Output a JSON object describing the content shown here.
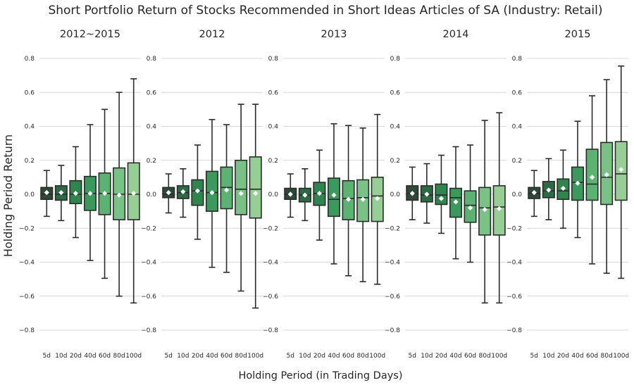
{
  "chart_data": {
    "type": "boxplot",
    "title": "Short Portfolio Return of Stocks Recommended in Short Ideas Articles of SA (Industry: Retail)",
    "ylabel": "Holding Period Return",
    "xlabel": "Holding Period (in Trading Days)",
    "ylim": [
      -0.9,
      0.9
    ],
    "yticks": [
      "0.8",
      "0.6",
      "0.4",
      "0.2",
      "0.0",
      "−0.2",
      "−0.4",
      "−0.6",
      "−0.8"
    ],
    "ytick_values": [
      0.8,
      0.6,
      0.4,
      0.2,
      0.0,
      -0.2,
      -0.4,
      -0.6,
      -0.8
    ],
    "grid": true,
    "categories": [
      "5d",
      "10d",
      "20d",
      "40d",
      "60d",
      "80d",
      "100d"
    ],
    "colors": [
      "#2c4a37",
      "#2a6b43",
      "#2e854e",
      "#3a9a5b",
      "#5bb371",
      "#79c285",
      "#95cf93"
    ],
    "mean_marker_color": "#ffffff",
    "panels": [
      {
        "title": "2012~2015",
        "boxes": [
          {
            "whislo": -0.13,
            "q1": -0.03,
            "med": 0.0,
            "q3": 0.04,
            "whishi": 0.14,
            "mean": 0.01
          },
          {
            "whislo": -0.155,
            "q1": -0.035,
            "med": 0.0,
            "q3": 0.05,
            "whishi": 0.17,
            "mean": 0.01
          },
          {
            "whislo": -0.255,
            "q1": -0.055,
            "med": 0.0,
            "q3": 0.08,
            "whishi": 0.28,
            "mean": 0.005
          },
          {
            "whislo": -0.39,
            "q1": -0.095,
            "med": 0.005,
            "q3": 0.105,
            "whishi": 0.41,
            "mean": 0.005
          },
          {
            "whislo": -0.495,
            "q1": -0.12,
            "med": 0.005,
            "q3": 0.125,
            "whishi": 0.5,
            "mean": 0.005
          },
          {
            "whislo": -0.6,
            "q1": -0.15,
            "med": 0.0,
            "q3": 0.155,
            "whishi": 0.6,
            "mean": -0.005
          },
          {
            "whislo": -0.64,
            "q1": -0.15,
            "med": 0.0,
            "q3": 0.185,
            "whishi": 0.68,
            "mean": 0.005
          }
        ]
      },
      {
        "title": "2012",
        "boxes": [
          {
            "whislo": -0.11,
            "q1": -0.02,
            "med": 0.0,
            "q3": 0.04,
            "whishi": 0.12,
            "mean": 0.01
          },
          {
            "whislo": -0.135,
            "q1": -0.025,
            "med": 0.01,
            "q3": 0.05,
            "whishi": 0.15,
            "mean": 0.015
          },
          {
            "whislo": -0.265,
            "q1": -0.065,
            "med": 0.02,
            "q3": 0.085,
            "whishi": 0.29,
            "mean": 0.02
          },
          {
            "whislo": -0.43,
            "q1": -0.1,
            "med": 0.01,
            "q3": 0.135,
            "whishi": 0.44,
            "mean": 0.01
          },
          {
            "whislo": -0.46,
            "q1": -0.085,
            "med": 0.04,
            "q3": 0.16,
            "whishi": 0.41,
            "mean": 0.025
          },
          {
            "whislo": -0.57,
            "q1": -0.12,
            "med": 0.03,
            "q3": 0.2,
            "whishi": 0.53,
            "mean": 0.005
          },
          {
            "whislo": -0.67,
            "q1": -0.14,
            "med": 0.03,
            "q3": 0.22,
            "whishi": 0.53,
            "mean": 0.005
          }
        ]
      },
      {
        "title": "2013",
        "boxes": [
          {
            "whislo": -0.135,
            "q1": -0.03,
            "med": 0.0,
            "q3": 0.035,
            "whishi": 0.12,
            "mean": 0.0
          },
          {
            "whislo": -0.155,
            "q1": -0.045,
            "med": -0.005,
            "q3": 0.035,
            "whishi": 0.15,
            "mean": -0.005
          },
          {
            "whislo": -0.27,
            "q1": -0.065,
            "med": 0.005,
            "q3": 0.07,
            "whishi": 0.26,
            "mean": 0.005
          },
          {
            "whislo": -0.41,
            "q1": -0.13,
            "med": -0.03,
            "q3": 0.095,
            "whishi": 0.415,
            "mean": -0.005
          },
          {
            "whislo": -0.48,
            "q1": -0.15,
            "med": -0.025,
            "q3": 0.08,
            "whishi": 0.405,
            "mean": -0.03
          },
          {
            "whislo": -0.515,
            "q1": -0.16,
            "med": -0.02,
            "q3": 0.085,
            "whishi": 0.39,
            "mean": -0.03
          },
          {
            "whislo": -0.53,
            "q1": -0.16,
            "med": -0.01,
            "q3": 0.1,
            "whishi": 0.47,
            "mean": -0.025
          }
        ]
      },
      {
        "title": "2014",
        "boxes": [
          {
            "whislo": -0.15,
            "q1": -0.035,
            "med": 0.005,
            "q3": 0.05,
            "whishi": 0.16,
            "mean": 0.005
          },
          {
            "whislo": -0.17,
            "q1": -0.045,
            "med": -0.005,
            "q3": 0.05,
            "whishi": 0.18,
            "mean": 0.0
          },
          {
            "whislo": -0.23,
            "q1": -0.06,
            "med": -0.005,
            "q3": 0.06,
            "whishi": 0.23,
            "mean": -0.025
          },
          {
            "whislo": -0.38,
            "q1": -0.135,
            "med": -0.02,
            "q3": 0.035,
            "whishi": 0.28,
            "mean": -0.045
          },
          {
            "whislo": -0.4,
            "q1": -0.165,
            "med": -0.065,
            "q3": 0.02,
            "whishi": 0.29,
            "mean": -0.08
          },
          {
            "whislo": -0.64,
            "q1": -0.24,
            "med": -0.08,
            "q3": 0.04,
            "whishi": 0.435,
            "mean": -0.09
          },
          {
            "whislo": -0.64,
            "q1": -0.24,
            "med": -0.075,
            "q3": 0.05,
            "whishi": 0.48,
            "mean": -0.085
          }
        ]
      },
      {
        "title": "2015",
        "boxes": [
          {
            "whislo": -0.13,
            "q1": -0.025,
            "med": 0.005,
            "q3": 0.04,
            "whishi": 0.14,
            "mean": 0.01
          },
          {
            "whislo": -0.15,
            "q1": -0.02,
            "med": 0.02,
            "q3": 0.075,
            "whishi": 0.21,
            "mean": 0.025
          },
          {
            "whislo": -0.2,
            "q1": -0.03,
            "med": 0.02,
            "q3": 0.09,
            "whishi": 0.26,
            "mean": 0.035
          },
          {
            "whislo": -0.255,
            "q1": -0.035,
            "med": 0.07,
            "q3": 0.16,
            "whishi": 0.43,
            "mean": 0.065
          },
          {
            "whislo": -0.41,
            "q1": -0.035,
            "med": 0.06,
            "q3": 0.265,
            "whishi": 0.58,
            "mean": 0.1
          },
          {
            "whislo": -0.465,
            "q1": -0.06,
            "med": 0.1,
            "q3": 0.305,
            "whishi": 0.675,
            "mean": 0.115
          },
          {
            "whislo": -0.495,
            "q1": -0.035,
            "med": 0.12,
            "q3": 0.31,
            "whishi": 0.755,
            "mean": 0.145
          }
        ]
      }
    ]
  }
}
